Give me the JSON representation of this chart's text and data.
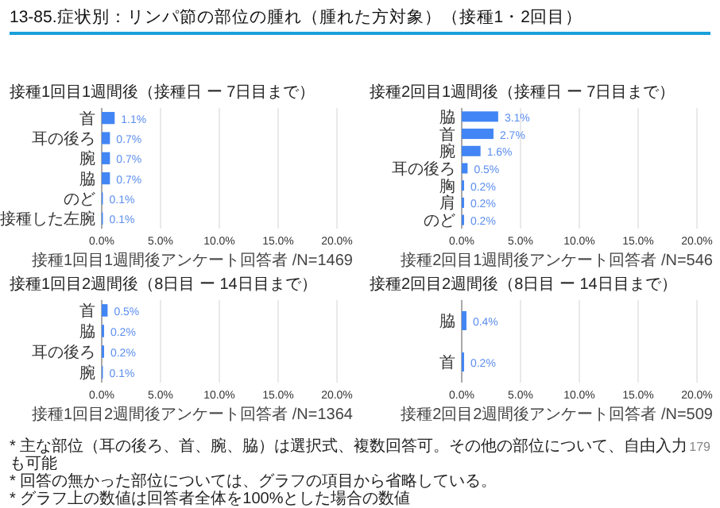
{
  "chart_data": [
    {
      "type": "bar",
      "orientation": "horizontal",
      "title": "13-85.症状別：リンパ節の部位の腫れ（腫れた方対象）（接種1・2回目）",
      "subtitle": "接種1回目1週間後（接種日 ー 7日目まで）",
      "categories": [
        "首",
        "耳の後ろ",
        "腕",
        "脇",
        "のど",
        "接種した左腕"
      ],
      "values": [
        1.1,
        0.7,
        0.7,
        0.7,
        0.1,
        0.1
      ],
      "value_labels": [
        "1.1%",
        "0.7%",
        "0.7%",
        "0.7%",
        "0.1%",
        "0.1%"
      ],
      "color": "#4285f4",
      "xlim": [
        0,
        20
      ],
      "xticks": [
        {
          "value": 0,
          "label": "0.0%"
        },
        {
          "value": 5,
          "label": "5.0%"
        },
        {
          "value": 10,
          "label": "10.0%"
        },
        {
          "value": 15,
          "label": "15.0%"
        },
        {
          "value": 20,
          "label": "20.0%"
        }
      ],
      "grid": "x",
      "annotations": [
        "接種1回目1週間後アンケート回答者 /N=1469"
      ]
    },
    {
      "type": "bar",
      "orientation": "horizontal",
      "subtitle": "接種2回目1週間後（接種日 ー 7日目まで）",
      "categories": [
        "脇",
        "首",
        "腕",
        "耳の後ろ",
        "胸",
        "肩",
        "のど"
      ],
      "values": [
        3.1,
        2.7,
        1.6,
        0.5,
        0.2,
        0.2,
        0.2
      ],
      "value_labels": [
        "3.1%",
        "2.7%",
        "1.6%",
        "0.5%",
        "0.2%",
        "0.2%",
        "0.2%"
      ],
      "color": "#4285f4",
      "xlim": [
        0,
        20
      ],
      "xticks": [
        {
          "value": 0,
          "label": "0.0%"
        },
        {
          "value": 5,
          "label": "5.0%"
        },
        {
          "value": 10,
          "label": "10.0%"
        },
        {
          "value": 15,
          "label": "15.0%"
        },
        {
          "value": 20,
          "label": "20.0%"
        }
      ],
      "grid": "x",
      "annotations": [
        "接種2回目1週間後アンケート回答者 /N=546"
      ]
    },
    {
      "type": "bar",
      "orientation": "horizontal",
      "subtitle": "接種1回目2週間後（8日目 ー 14日目まで）",
      "categories": [
        "首",
        "脇",
        "耳の後ろ",
        "腕"
      ],
      "values": [
        0.5,
        0.2,
        0.2,
        0.1
      ],
      "value_labels": [
        "0.5%",
        "0.2%",
        "0.2%",
        "0.1%"
      ],
      "color": "#4285f4",
      "xlim": [
        0,
        20
      ],
      "xticks": [
        {
          "value": 0,
          "label": "0.0%"
        },
        {
          "value": 5,
          "label": "5.0%"
        },
        {
          "value": 10,
          "label": "10.0%"
        },
        {
          "value": 15,
          "label": "15.0%"
        },
        {
          "value": 20,
          "label": "20.0%"
        }
      ],
      "grid": "x",
      "annotations": [
        "接種1回目2週間後アンケート回答者 /N=1364",
        "* 主な部位（耳の後ろ、首、腕、脇）は選択式、複数回答可。その他の部位について、自由入力も可能",
        "* 回答の無かった部位については、グラフの項目から省略している。",
        "* グラフ上の数値は回答者全体を100%とした場合の数値"
      ]
    },
    {
      "type": "bar",
      "orientation": "horizontal",
      "subtitle": "接種2回目2週間後（8日目 ー 14日目まで）",
      "categories": [
        "脇",
        "首"
      ],
      "values": [
        0.4,
        0.2
      ],
      "value_labels": [
        "0.4%",
        "0.2%"
      ],
      "color": "#4285f4",
      "xlim": [
        0,
        20
      ],
      "xticks": [
        {
          "value": 0,
          "label": "0.0%"
        },
        {
          "value": 5,
          "label": "5.0%"
        },
        {
          "value": 10,
          "label": "10.0%"
        },
        {
          "value": 15,
          "label": "15.0%"
        },
        {
          "value": 20,
          "label": "20.0%"
        }
      ],
      "grid": "x",
      "annotations": [
        "接種2回目2週間後アンケート回答者 /N=509",
        "179"
      ]
    }
  ]
}
